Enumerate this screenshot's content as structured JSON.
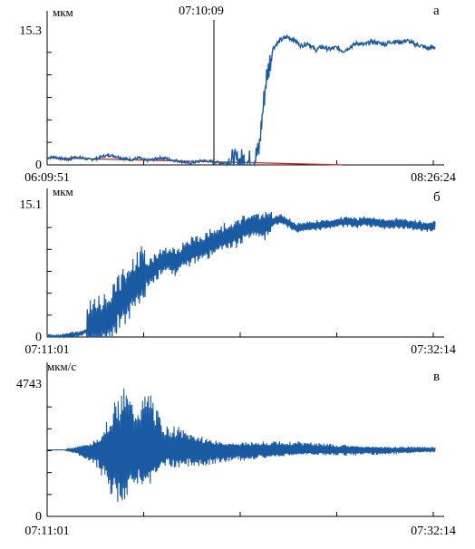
{
  "colors": {
    "series": "#1a5aa3",
    "trend": "#cc2222",
    "axis": "#000000"
  },
  "chart_data": [
    {
      "type": "line",
      "panel_label": "а",
      "unit": "мкм",
      "ylim": [
        0,
        15.3
      ],
      "y_ticks": [
        "15.3",
        "0"
      ],
      "x_ticks": [
        "06:09:51",
        "08:26:24"
      ],
      "marker_label": "07:10:09",
      "series": [
        {
          "values": [
            0.8,
            0.9,
            0.7,
            0.6,
            0.9,
            0.8,
            0.6,
            0.7,
            1.0,
            1.1,
            0.9,
            0.7,
            0.6,
            0.8,
            0.5,
            0.6,
            0.8,
            0.7,
            0.5,
            0.4,
            0.2,
            0.3,
            0.5,
            0.4,
            0.3,
            0.2,
            0.4,
            0.3,
            0.5,
            0.2,
            1.5,
            9.5,
            13.2,
            14.1,
            14.5,
            14.2,
            13.5,
            13.8,
            13.0,
            13.4,
            13.1,
            13.3,
            12.9,
            13.4,
            13.8,
            13.6,
            14.0,
            13.8,
            13.7,
            14.0,
            13.9,
            14.1,
            13.7,
            13.5,
            13.2,
            13.4
          ]
        },
        {
          "name": "",
          "values": [
            0.8,
            0.0
          ]
        }
      ]
    },
    {
      "type": "line",
      "panel_label": "б",
      "unit": "мкм",
      "ylim": [
        0,
        15.1
      ],
      "y_ticks": [
        "15.1",
        "0"
      ],
      "x_ticks": [
        "07:11:01",
        "07:32:14"
      ],
      "series": [
        {
          "values": [
            0,
            0,
            0.1,
            0.3,
            0.4,
            1.0,
            1.5,
            2.0,
            3.5,
            4.8,
            6.0,
            7.1,
            7.5,
            8.4,
            8.9,
            8.6,
            9.5,
            10.0,
            10.3,
            10.8,
            11.2,
            11.6,
            12.0,
            12.5,
            13.0,
            12.6,
            13.2,
            13.6,
            13.1,
            12.5,
            12.7,
            12.8,
            12.9,
            13.0,
            13.2,
            13.3,
            13.1,
            13.3,
            13.2,
            13.0,
            13.0,
            13.1,
            12.9,
            12.8,
            12.7,
            12.8
          ]
        }
      ]
    },
    {
      "type": "line",
      "panel_label": "в",
      "unit": "мкм/с",
      "ylim": [
        0,
        4743
      ],
      "y_ticks": [
        "4743",
        "0"
      ],
      "x_ticks": [
        "07:11:01",
        "07:32:14"
      ],
      "series": [
        {
          "amplitude": [
            0,
            0,
            0,
            120,
            260,
            400,
            700,
            1400,
            2100,
            2400,
            1700,
            1800,
            2100,
            1200,
            800,
            900,
            700,
            650,
            600,
            520,
            470,
            430,
            400,
            380,
            350,
            340,
            330,
            320,
            300,
            300,
            280,
            270,
            250,
            230,
            220,
            210,
            200,
            190,
            180,
            170,
            160,
            150,
            140,
            120,
            110,
            100
          ],
          "baseline": 2400
        }
      ]
    }
  ]
}
